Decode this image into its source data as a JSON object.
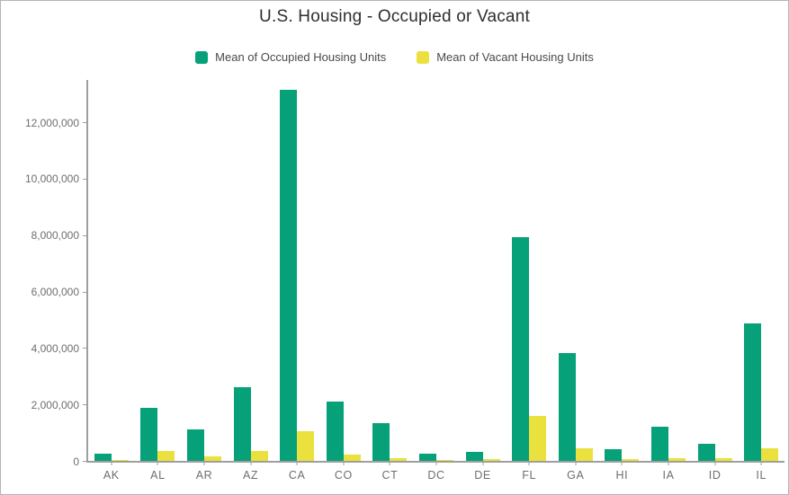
{
  "chart": {
    "title": "U.S. Housing - Occupied or Vacant",
    "legend": [
      {
        "label": "Mean of Occupied Housing Units",
        "color": "#07a179"
      },
      {
        "label": "Mean of Vacant Housing Units",
        "color": "#ebe13e"
      }
    ],
    "colors": {
      "axis_line": "#9e9e9e",
      "axis_text": "#6e6e6e",
      "title_text": "#2e2e2e",
      "page_border": "#b5b5b5",
      "background": "#ffffff"
    }
  },
  "chart_data": {
    "type": "bar",
    "title": "U.S. Housing - Occupied or Vacant",
    "categories": [
      "AK",
      "AL",
      "AR",
      "AZ",
      "CA",
      "CO",
      "CT",
      "DC",
      "DE",
      "FL",
      "GA",
      "HI",
      "IA",
      "ID",
      "IL"
    ],
    "series": [
      {
        "name": "Mean of Occupied Housing Units",
        "color": "#07a179",
        "values": [
          240000,
          1870000,
          1130000,
          2610000,
          13150000,
          2100000,
          1350000,
          250000,
          330000,
          7940000,
          3810000,
          420000,
          1220000,
          590000,
          4870000
        ]
      },
      {
        "name": "Mean of Vacant Housing Units",
        "color": "#ebe13e",
        "values": [
          45000,
          340000,
          160000,
          350000,
          1060000,
          210000,
          90000,
          30000,
          50000,
          1590000,
          460000,
          60000,
          110000,
          90000,
          440000
        ]
      }
    ],
    "xlabel": "",
    "ylabel": "",
    "ylim": [
      0,
      13500000
    ],
    "yticks": [
      0,
      2000000,
      4000000,
      6000000,
      8000000,
      10000000,
      12000000
    ],
    "grid": false,
    "legend_position": "top"
  }
}
